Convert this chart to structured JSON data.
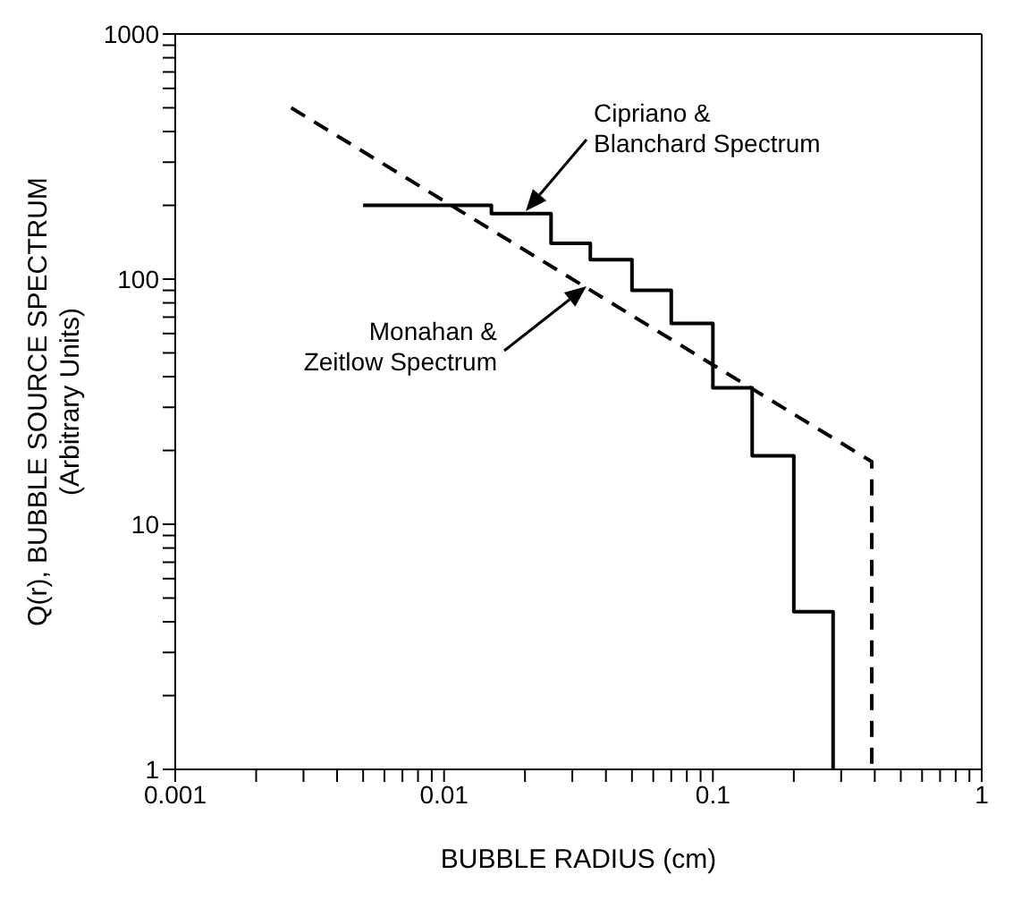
{
  "chart_data": {
    "type": "line",
    "xlabel": "BUBBLE RADIUS (cm)",
    "ylabel": "Q(r), BUBBLE SOURCE SPECTRUM\n(Arbitrary Units)",
    "log": "xy",
    "xlim": [
      0.001,
      1
    ],
    "ylim": [
      1,
      1000
    ],
    "xticks": [
      0.001,
      {
        "value": 0.002,
        "label": null
      },
      {
        "value": 0.003,
        "label": null
      },
      {
        "value": 0.004,
        "label": null
      },
      {
        "value": 0.005,
        "label": null
      },
      {
        "value": 0.006,
        "label": null
      },
      {
        "value": 0.007,
        "label": null
      },
      {
        "value": 0.008,
        "label": null
      },
      {
        "value": 0.009,
        "label": null
      },
      0.01,
      {
        "value": 0.02,
        "label": null
      },
      {
        "value": 0.03,
        "label": null
      },
      {
        "value": 0.04,
        "label": null
      },
      {
        "value": 0.05,
        "label": null
      },
      {
        "value": 0.06,
        "label": null
      },
      {
        "value": 0.07,
        "label": null
      },
      {
        "value": 0.08,
        "label": null
      },
      {
        "value": 0.09,
        "label": null
      },
      0.1,
      {
        "value": 0.2,
        "label": null
      },
      {
        "value": 0.3,
        "label": null
      },
      {
        "value": 0.4,
        "label": null
      },
      {
        "value": 0.5,
        "label": null
      },
      {
        "value": 0.6,
        "label": null
      },
      {
        "value": 0.7,
        "label": null
      },
      {
        "value": 0.8,
        "label": null
      },
      {
        "value": 0.9,
        "label": null
      },
      1
    ],
    "yticks": [
      1,
      {
        "value": 2,
        "label": null
      },
      {
        "value": 3,
        "label": null
      },
      {
        "value": 4,
        "label": null
      },
      {
        "value": 5,
        "label": null
      },
      {
        "value": 6,
        "label": null
      },
      {
        "value": 7,
        "label": null
      },
      {
        "value": 8,
        "label": null
      },
      {
        "value": 9,
        "label": null
      },
      10,
      {
        "value": 20,
        "label": null
      },
      {
        "value": 30,
        "label": null
      },
      {
        "value": 40,
        "label": null
      },
      {
        "value": 50,
        "label": null
      },
      {
        "value": 60,
        "label": null
      },
      {
        "value": 70,
        "label": null
      },
      {
        "value": 80,
        "label": null
      },
      {
        "value": 90,
        "label": null
      },
      100,
      {
        "value": 200,
        "label": null
      },
      {
        "value": 300,
        "label": null
      },
      {
        "value": 400,
        "label": null
      },
      {
        "value": 500,
        "label": null
      },
      {
        "value": 600,
        "label": null
      },
      {
        "value": 700,
        "label": null
      },
      {
        "value": 800,
        "label": null
      },
      {
        "value": 900,
        "label": null
      },
      1000
    ],
    "marker": "none",
    "series": [
      {
        "type": "step",
        "color": "#000000",
        "line_style": "solid",
        "x": [
          0.005,
          0.015,
          0.025,
          0.035,
          0.05,
          0.07,
          0.1,
          0.14,
          0.2,
          0.28
        ],
        "values": [
          200,
          185,
          140,
          120,
          90,
          66,
          36,
          19,
          4.4,
          1
        ]
      },
      {
        "color": "#000000",
        "line_style": "dashed",
        "x": [
          0.0027,
          0.39,
          0.39
        ],
        "values": [
          500,
          18,
          1
        ]
      }
    ],
    "annotations": [
      "Cipriano &\nBlanchard Spectrum",
      "Monahan &\nZeitlow Spectrum"
    ]
  }
}
